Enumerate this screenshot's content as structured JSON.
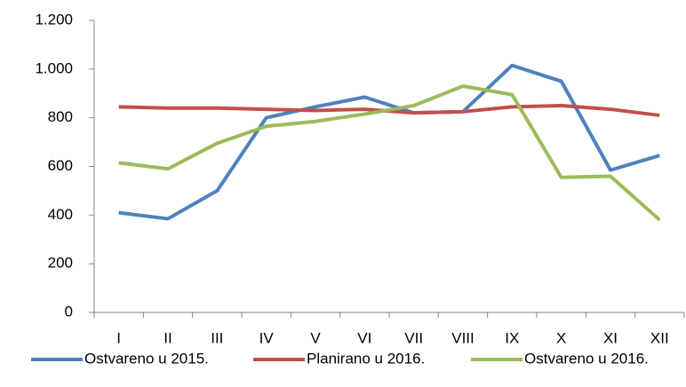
{
  "chart_data": {
    "type": "line",
    "categories": [
      "I",
      "II",
      "III",
      "IV",
      "V",
      "VI",
      "VII",
      "VIII",
      "IX",
      "X",
      "XI",
      "XII"
    ],
    "series": [
      {
        "name": "Ostvareno u 2015.",
        "color": "#4f81bd",
        "values": [
          410,
          385,
          500,
          800,
          845,
          885,
          820,
          825,
          1015,
          950,
          585,
          645
        ]
      },
      {
        "name": "Planirano u 2016.",
        "color": "#c0504d",
        "values": [
          845,
          840,
          840,
          835,
          830,
          835,
          820,
          825,
          845,
          850,
          835,
          810
        ]
      },
      {
        "name": "Ostvareno u 2016.",
        "color": "#9bbb59",
        "values": [
          615,
          590,
          695,
          765,
          785,
          815,
          850,
          930,
          895,
          555,
          560,
          380
        ]
      }
    ],
    "ylim": [
      0,
      1200
    ],
    "yticks": [
      0,
      200,
      400,
      600,
      800,
      {
        "value": 1000,
        "label": "1.000"
      },
      {
        "value": 1200,
        "label": "1.200"
      }
    ],
    "grid": false,
    "legend": "bottom"
  }
}
